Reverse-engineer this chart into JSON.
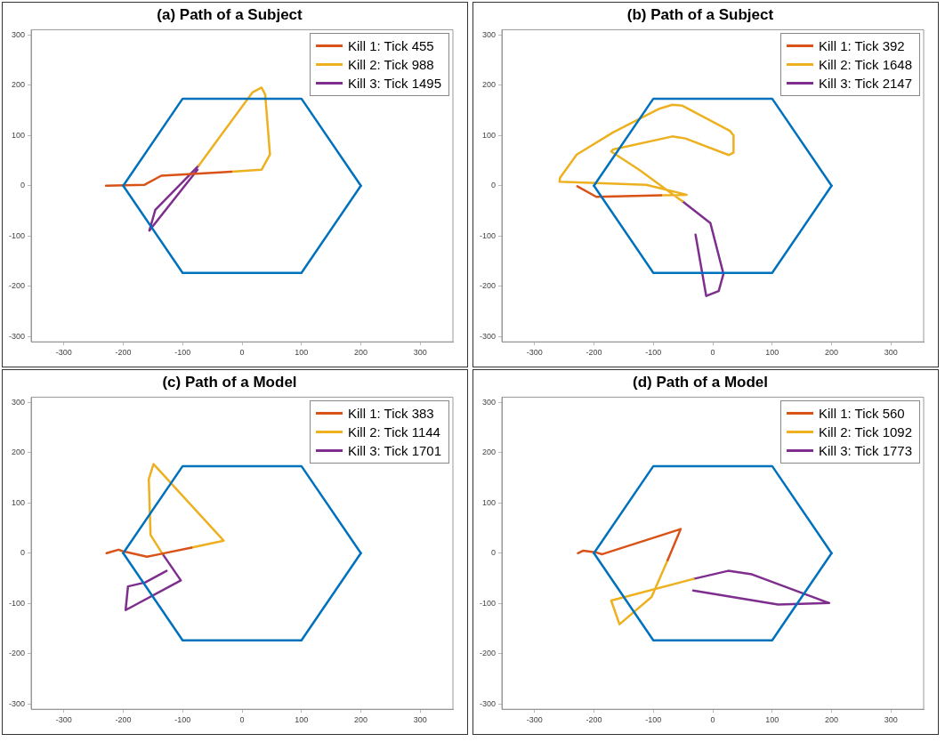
{
  "chart_data": [
    {
      "type": "line",
      "title": "(a) Path of a Subject",
      "xlim": [
        -355,
        355
      ],
      "ylim": [
        -310,
        310
      ],
      "xticks": [
        -300,
        -200,
        -100,
        0,
        100,
        200,
        300
      ],
      "yticks": [
        -300,
        -200,
        -100,
        0,
        100,
        200,
        300
      ],
      "grid": false,
      "legend": "top right",
      "marker": "none",
      "line_style": "solid",
      "series": [
        {
          "color": "#0072bd",
          "x": [
            -200,
            -100,
            100,
            200
          ],
          "values": [
            0,
            173,
            173,
            0
          ]
        },
        {
          "color": "#0072bd",
          "x": [
            -200,
            -100,
            100,
            200
          ],
          "values": [
            0,
            -173,
            -173,
            0
          ]
        },
        {
          "name": "Kill 1: Tick 455",
          "color": "#d95319",
          "x": [
            -229,
            -164,
            -136,
            -18
          ],
          "values": [
            0,
            2,
            20,
            28
          ]
        },
        {
          "name": "Kill 2: Tick 988",
          "color": "#edb120",
          "x": [
            -18,
            33,
            47,
            39,
            33,
            18,
            -73
          ],
          "values": [
            28,
            32,
            62,
            181,
            195,
            186,
            40
          ]
        },
        {
          "name": "Kill 3: Tick 1495",
          "color": "#7e2f8e",
          "x": [
            -73,
            -146,
            -156,
            -75
          ],
          "values": [
            40,
            -48,
            -89,
            32
          ]
        }
      ]
    },
    {
      "type": "line",
      "title": "(b) Path of a Subject",
      "xlim": [
        -355,
        355
      ],
      "ylim": [
        -310,
        310
      ],
      "xticks": [
        -300,
        -200,
        -100,
        0,
        100,
        200,
        300
      ],
      "yticks": [
        -300,
        -200,
        -100,
        0,
        100,
        200,
        300
      ],
      "grid": false,
      "legend": "top right",
      "marker": "none",
      "line_style": "solid",
      "series": [
        {
          "color": "#0072bd",
          "x": [
            -200,
            -100,
            100,
            200
          ],
          "values": [
            0,
            173,
            173,
            0
          ]
        },
        {
          "color": "#0072bd",
          "x": [
            -200,
            -100,
            100,
            200
          ],
          "values": [
            0,
            -173,
            -173,
            0
          ]
        },
        {
          "name": "Kill 1: Tick 392",
          "color": "#d95319",
          "x": [
            -228,
            -196,
            -87
          ],
          "values": [
            -1,
            -22,
            -19
          ]
        },
        {
          "name": "Kill 2: Tick 1648",
          "color": "#edb120",
          "x": [
            -87,
            -44,
            -112,
            -258,
            -257,
            -229,
            -168,
            -90,
            -68,
            -51,
            29,
            35,
            35,
            27,
            -46,
            -68,
            -168,
            -171,
            -123,
            -51
          ],
          "values": [
            -19,
            -18,
            2,
            8,
            16,
            62,
            106,
            153,
            161,
            159,
            109,
            100,
            66,
            61,
            94,
            98,
            72,
            68,
            31,
            -31
          ]
        },
        {
          "name": "Kill 3: Tick 2147",
          "color": "#7e2f8e",
          "x": [
            -51,
            -4,
            18,
            10,
            -11,
            -29
          ],
          "values": [
            -31,
            -74,
            -175,
            -209,
            -219,
            -97
          ]
        }
      ]
    },
    {
      "type": "line",
      "title": "(c) Path of a Model",
      "xlim": [
        -355,
        355
      ],
      "ylim": [
        -310,
        310
      ],
      "xticks": [
        -300,
        -200,
        -100,
        0,
        100,
        200,
        300
      ],
      "yticks": [
        -300,
        -200,
        -100,
        0,
        100,
        200,
        300
      ],
      "grid": false,
      "legend": "top right",
      "marker": "none",
      "line_style": "solid",
      "series": [
        {
          "color": "#0072bd",
          "x": [
            -200,
            -100,
            100,
            200
          ],
          "values": [
            0,
            173,
            173,
            0
          ]
        },
        {
          "color": "#0072bd",
          "x": [
            -200,
            -100,
            100,
            200
          ],
          "values": [
            0,
            -173,
            -173,
            0
          ]
        },
        {
          "name": "Kill 1: Tick 383",
          "color": "#d95319",
          "x": [
            -228,
            -208,
            -201,
            -160,
            -135,
            -85
          ],
          "values": [
            0,
            7,
            4,
            -7,
            -1,
            11
          ]
        },
        {
          "name": "Kill 2: Tick 1144",
          "color": "#edb120",
          "x": [
            -85,
            -31,
            -149,
            -157,
            -154,
            -134
          ],
          "values": [
            11,
            25,
            177,
            147,
            36,
            -1
          ]
        },
        {
          "name": "Kill 3: Tick 1701",
          "color": "#7e2f8e",
          "x": [
            -134,
            -103,
            -196,
            -192,
            -163,
            -127
          ],
          "values": [
            -1,
            -54,
            -113,
            -66,
            -58,
            -35
          ]
        }
      ]
    },
    {
      "type": "line",
      "title": "(d) Path of a Model",
      "xlim": [
        -355,
        355
      ],
      "ylim": [
        -310,
        310
      ],
      "xticks": [
        -300,
        -200,
        -100,
        0,
        100,
        200,
        300
      ],
      "yticks": [
        -300,
        -200,
        -100,
        0,
        100,
        200,
        300
      ],
      "grid": false,
      "legend": "top right",
      "marker": "none",
      "line_style": "solid",
      "series": [
        {
          "color": "#0072bd",
          "x": [
            -200,
            -100,
            100,
            200
          ],
          "values": [
            0,
            173,
            173,
            0
          ]
        },
        {
          "color": "#0072bd",
          "x": [
            -200,
            -100,
            100,
            200
          ],
          "values": [
            0,
            -173,
            -173,
            0
          ]
        },
        {
          "name": "Kill 1: Tick 560",
          "color": "#d95319",
          "x": [
            -227,
            -218,
            -198,
            -186,
            -54,
            -76
          ],
          "values": [
            0,
            5,
            2,
            -2,
            48,
            -14
          ]
        },
        {
          "name": "Kill 2: Tick 1092",
          "color": "#edb120",
          "x": [
            -76,
            -103,
            -157,
            -171,
            -32
          ],
          "values": [
            -14,
            -87,
            -141,
            -94,
            -51
          ]
        },
        {
          "name": "Kill 3: Tick 1773",
          "color": "#7e2f8e",
          "x": [
            -32,
            26,
            66,
            196,
            110,
            -33
          ],
          "values": [
            -51,
            -35,
            -42,
            -99,
            -102,
            -74
          ]
        }
      ]
    }
  ]
}
